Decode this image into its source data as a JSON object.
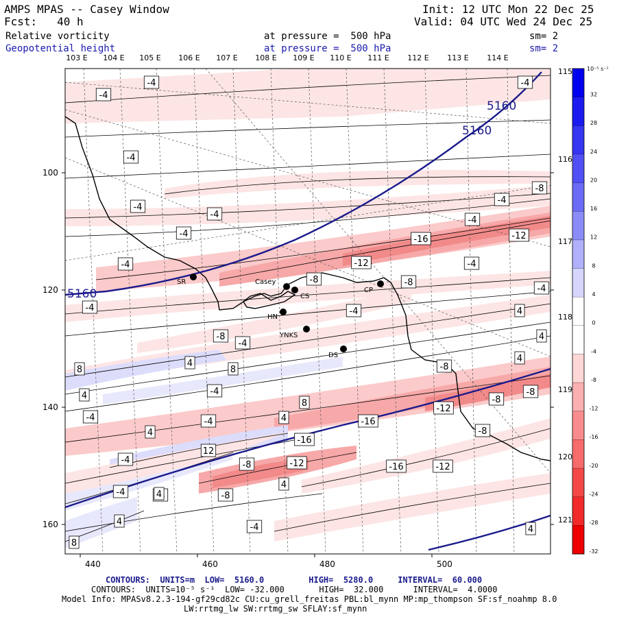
{
  "header": {
    "title": "AMPS MPAS -- Casey Window",
    "forecast": "Fcst:   40 h",
    "init": "Init: 12 UTC Mon 22 Dec 25",
    "valid": "Valid: 04 UTC Wed 24 Dec 25"
  },
  "fields": [
    {
      "name": "Relative vorticity",
      "level": "at pressure =  500 hPa",
      "smooth": "sm= 2"
    },
    {
      "name": "Geopotential height",
      "level": "at pressure =  500 hPa",
      "smooth": "sm= 2"
    }
  ],
  "top_lon_labels": [
    "103 E",
    "104 E",
    "105 E",
    "106 E",
    "107 E",
    "108 E",
    "109 E",
    "110 E",
    "111 E",
    "112 E",
    "113 E",
    "114 E"
  ],
  "right_lon_labels": [
    "115 E",
    "116 E",
    "117 E",
    "118 E",
    "119 E",
    "120 E",
    "121 E"
  ],
  "y_ticks": [
    "100",
    "120",
    "140",
    "160"
  ],
  "x_ticks": [
    "440",
    "460",
    "480",
    "500"
  ],
  "stations": [
    {
      "id": "SR"
    },
    {
      "id": "Casey"
    },
    {
      "id": "CS"
    },
    {
      "id": "HN"
    },
    {
      "id": "YNKS"
    },
    {
      "id": "DS"
    },
    {
      "id": "CP"
    }
  ],
  "height_labels": [
    "5160",
    "5160",
    "5160"
  ],
  "vort_labels": [
    "-4",
    "-4",
    "-4",
    "-4",
    "-4",
    "-4",
    "-4",
    "-4",
    "-4",
    "-8",
    "-4",
    "-4",
    "-16",
    "-12",
    "-12",
    "-8",
    "-8",
    "-4",
    "-4",
    "-8",
    "-4",
    "4",
    "-4",
    "4",
    "4",
    "8",
    "8",
    "-8",
    "4",
    "4",
    "-4",
    "-4",
    "4",
    "-4",
    "4",
    "-16",
    "-12",
    "-16",
    "-8",
    "-8",
    "-8",
    "-4",
    "12",
    "-12",
    "-8",
    "-16",
    "-12",
    "-4",
    "-8",
    "-4",
    "4",
    "-4",
    "4",
    "8",
    "4",
    "8",
    "4"
  ],
  "colorbar": {
    "unit": "10⁻⁵ s⁻¹",
    "labels": [
      "32",
      "28",
      "24",
      "20",
      "16",
      "12",
      "8",
      "4",
      "0",
      "-4",
      "-8",
      "-12",
      "-16",
      "-20",
      "-24",
      "-28",
      "-32"
    ],
    "colors": [
      "#0000ee",
      "#1a1af0",
      "#3535f2",
      "#5050f4",
      "#6b6bf6",
      "#8c8cf8",
      "#b0b0fb",
      "#d6d6fd",
      "#ffffff",
      "#ffffff",
      "#fdd6d6",
      "#fbb0b0",
      "#f88c8c",
      "#f66b6b",
      "#f44848",
      "#f22a2a",
      "#ee0000"
    ]
  },
  "footer": {
    "line1_label": "CONTOURS:",
    "line1_units": "UNITS=m",
    "line1_low": "LOW=  5160.0",
    "line1_high": "HIGH=  5280.0",
    "line1_interval": "INTERVAL=  60.000",
    "line2_label": "CONTOURS:",
    "line2_units": "UNITS=10⁻⁵ s⁻¹",
    "line2_low": "LOW= -32.000",
    "line2_high": "HIGH=  32.000",
    "line2_interval": "INTERVAL=  4.0000",
    "model_info": "Model Info: MPASv8.2.3-194-gf29cd82c CU:cu_grell_freitas PBL:bl_mynn MP:mp_thompson SF:sf_noahmp 8.0",
    "model_info2": "LW:rrtmg_lw SW:rrtmg_sw SFLAY:sf_mynn"
  }
}
